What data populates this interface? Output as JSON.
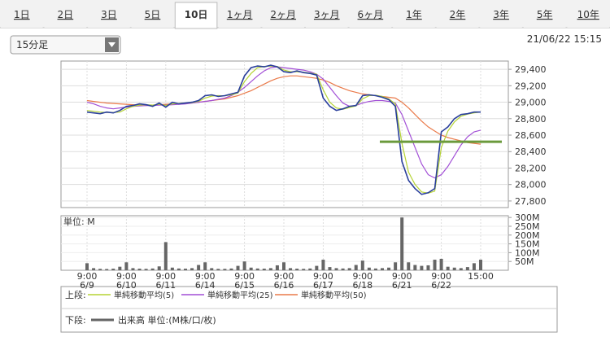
{
  "tabs": [
    "1日",
    "2日",
    "3日",
    "5日",
    "10日",
    "1ヶ月",
    "2ヶ月",
    "3ヶ月",
    "6ヶ月",
    "1年",
    "2年",
    "3年",
    "5年",
    "10年"
  ],
  "selected_tab": 4,
  "interval": "15分足",
  "timestamp": "21/06/22 15:15",
  "chart_data": {
    "type": "line",
    "categories": [
      "9:00",
      null,
      null,
      null,
      null,
      null,
      "9:00",
      null,
      null,
      null,
      null,
      null,
      "9:00",
      null,
      null,
      null,
      null,
      null,
      "9:00",
      null,
      null,
      null,
      null,
      null,
      "9:00",
      null,
      null,
      null,
      null,
      null,
      "9:00",
      null,
      null,
      null,
      null,
      null,
      "9:00",
      null,
      null,
      null,
      null,
      null,
      "9:00",
      null,
      null,
      null,
      null,
      null,
      "9:00",
      null,
      null,
      null,
      null,
      null,
      "9:00",
      null,
      null,
      null,
      null,
      null,
      "15:00"
    ],
    "dates": [
      "6/9",
      null,
      null,
      null,
      null,
      null,
      "6/10",
      null,
      null,
      null,
      null,
      null,
      "6/11",
      null,
      null,
      null,
      null,
      null,
      "6/14",
      null,
      null,
      null,
      null,
      null,
      "6/15",
      null,
      null,
      null,
      null,
      null,
      "6/16",
      null,
      null,
      null,
      null,
      null,
      "6/17",
      null,
      null,
      null,
      null,
      null,
      "6/18",
      null,
      null,
      null,
      null,
      null,
      "6/21",
      null,
      null,
      null,
      null,
      null,
      "6/22",
      null,
      null,
      null,
      null,
      null,
      null
    ],
    "color": "#2a3f9c",
    "values": [
      28880,
      28870,
      28860,
      28880,
      28870,
      28900,
      28950,
      28960,
      28980,
      28970,
      28950,
      28990,
      28940,
      29000,
      28980,
      28990,
      29000,
      29020,
      29080,
      29090,
      29070,
      29080,
      29100,
      29120,
      29320,
      29420,
      29440,
      29430,
      29450,
      29430,
      29370,
      29360,
      29380,
      29360,
      29350,
      29330,
      29050,
      28950,
      28900,
      28920,
      28950,
      28960,
      29080,
      29090,
      29080,
      29060,
      29030,
      28950,
      28280,
      28050,
      27950,
      27880,
      27900,
      27950,
      28640,
      28700,
      28800,
      28850,
      28860,
      28880,
      28880
    ],
    "upper_label": "上段:",
    "series": [
      {
        "name": "単純移動平均(5)",
        "color": "#b5d334",
        "values": [
          28900,
          28890,
          28880,
          28875,
          28875,
          28880,
          28920,
          28950,
          28965,
          28970,
          28965,
          28975,
          28960,
          28980,
          28985,
          28990,
          28995,
          29010,
          29050,
          29075,
          29080,
          29078,
          29090,
          29110,
          29250,
          29350,
          29420,
          29435,
          29440,
          29435,
          29390,
          29370,
          29370,
          29365,
          29355,
          29340,
          29150,
          29000,
          28930,
          28915,
          28935,
          28955,
          29040,
          29080,
          29085,
          29070,
          29040,
          28980,
          28500,
          28150,
          28000,
          27910,
          27895,
          27920,
          28450,
          28650,
          28760,
          28830,
          28855,
          28870,
          28880
        ]
      },
      {
        "name": "単純移動平均(25)",
        "color": "#a24fd6",
        "values": [
          29000,
          28980,
          28950,
          28930,
          28920,
          28930,
          28940,
          28950,
          28955,
          28960,
          28960,
          28965,
          28965,
          28970,
          28975,
          28980,
          28990,
          29000,
          29010,
          29020,
          29035,
          29050,
          29080,
          29120,
          29180,
          29250,
          29320,
          29380,
          29420,
          29430,
          29420,
          29410,
          29400,
          29390,
          29370,
          29340,
          29280,
          29180,
          29080,
          28990,
          28950,
          28960,
          28990,
          29010,
          29020,
          29020,
          29010,
          28990,
          28850,
          28650,
          28450,
          28250,
          28120,
          28080,
          28120,
          28220,
          28350,
          28480,
          28580,
          28640,
          28660
        ]
      },
      {
        "name": "単純移動平均(50)",
        "color": "#ea7a4a",
        "values": [
          29020,
          29010,
          29000,
          28990,
          28985,
          28980,
          28975,
          28970,
          28965,
          28960,
          28965,
          28970,
          28975,
          28980,
          28985,
          28990,
          28995,
          29000,
          29010,
          29020,
          29030,
          29040,
          29060,
          29080,
          29110,
          29140,
          29180,
          29220,
          29260,
          29290,
          29310,
          29320,
          29320,
          29310,
          29300,
          29290,
          29270,
          29240,
          29200,
          29170,
          29140,
          29120,
          29100,
          29090,
          29080,
          29070,
          29060,
          29050,
          29000,
          28930,
          28850,
          28770,
          28700,
          28650,
          28600,
          28570,
          28550,
          28530,
          28510,
          28500,
          28490
        ]
      }
    ],
    "hline": {
      "value": 28520,
      "color": "#6b9a3c"
    },
    "ylim": [
      27720,
      29500
    ],
    "yticks": [
      {
        "value": 27800,
        "label": "27,800"
      },
      {
        "value": 28000,
        "label": "28,000"
      },
      {
        "value": 28200,
        "label": "28,200"
      },
      {
        "value": 28400,
        "label": "28,400"
      },
      {
        "value": 28600,
        "label": "28,600"
      },
      {
        "value": 28800,
        "label": "28,800"
      },
      {
        "value": 29000,
        "label": "29,000"
      },
      {
        "value": 29200,
        "label": "29,200"
      },
      {
        "value": 29400,
        "label": "29,400"
      }
    ],
    "grid": true,
    "volume": {
      "unit": "単位: M",
      "lower_label": "下段:",
      "name": "出来高 単位:(M株/口/枚)",
      "color": "#666666",
      "values": [
        40,
        12,
        8,
        7,
        9,
        20,
        45,
        12,
        9,
        8,
        10,
        22,
        160,
        15,
        10,
        9,
        12,
        30,
        45,
        12,
        8,
        8,
        10,
        25,
        50,
        15,
        10,
        9,
        12,
        28,
        45,
        12,
        9,
        8,
        10,
        25,
        60,
        18,
        12,
        10,
        12,
        30,
        55,
        15,
        10,
        12,
        15,
        45,
        300,
        45,
        30,
        25,
        28,
        60,
        65,
        20,
        15,
        12,
        18,
        40,
        60
      ],
      "ylim": [
        0,
        310
      ],
      "yticks": [
        {
          "value": 50,
          "label": "50M"
        },
        {
          "value": 100,
          "label": "100M"
        },
        {
          "value": 150,
          "label": "150M"
        },
        {
          "value": 200,
          "label": "200M"
        },
        {
          "value": 250,
          "label": "250M"
        },
        {
          "value": 300,
          "label": "300M"
        }
      ]
    }
  }
}
